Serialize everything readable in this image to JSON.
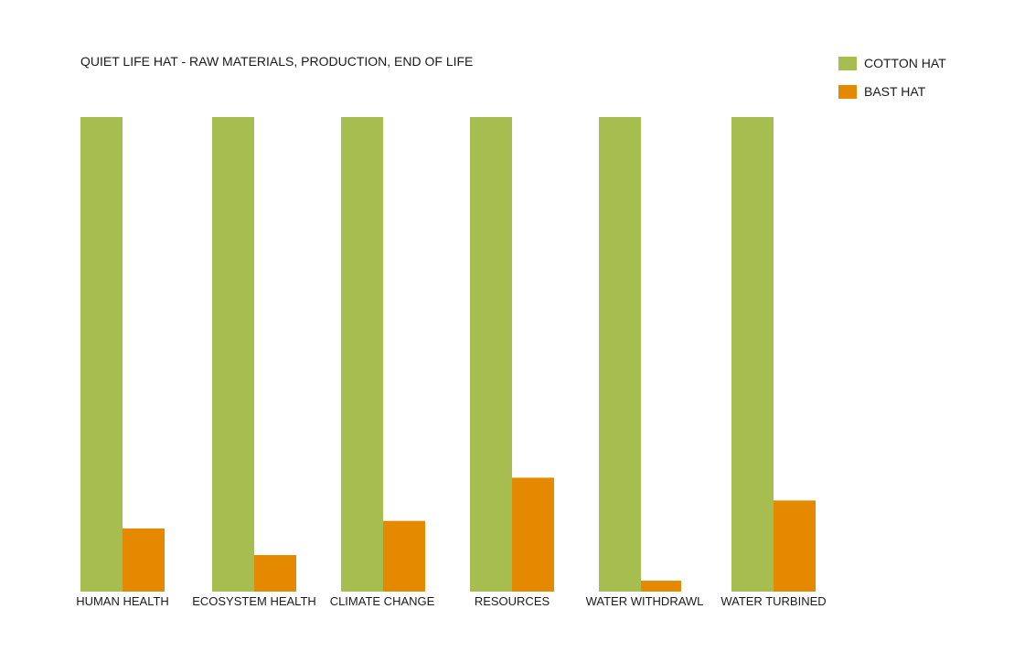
{
  "chart_data": {
    "type": "bar",
    "title": "QUIET LIFE HAT - RAW MATERIALS, PRODUCTION, END OF LIFE",
    "xlabel": "",
    "ylabel": "",
    "ylim": [
      0,
      100
    ],
    "grid": false,
    "legend_position": "top-right",
    "categories": [
      "HUMAN HEALTH",
      "ECOSYSTEM HEALTH",
      "CLIMATE CHANGE",
      "RESOURCES",
      "WATER WITHDRAWL",
      "WATER TURBINED"
    ],
    "series": [
      {
        "name": "COTTON HAT",
        "color": "#a6bd50",
        "values": [
          100,
          100,
          100,
          100,
          100,
          100
        ]
      },
      {
        "name": "BAST HAT",
        "color": "#e58900",
        "values": [
          13.3,
          7.7,
          14.9,
          24.0,
          2.3,
          19.2
        ]
      }
    ]
  }
}
